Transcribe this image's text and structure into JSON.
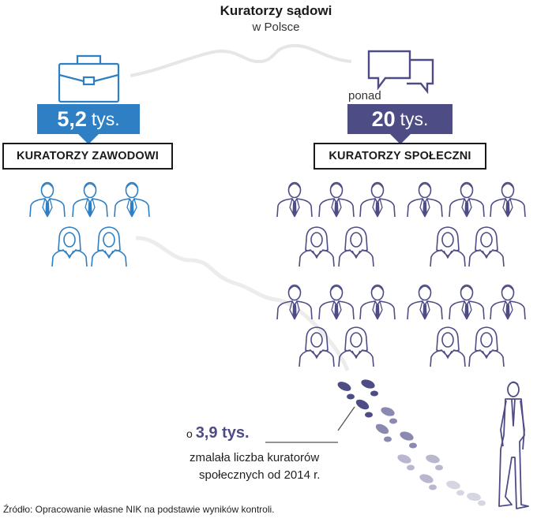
{
  "header": {
    "title": "Kuratorzy sądowi",
    "subtitle": "w Polsce"
  },
  "professional": {
    "value": "5,2",
    "unit": "tys.",
    "label": "KURATORZY ZAWODOWI",
    "color": "#2f7fc4",
    "icon": "briefcase-icon"
  },
  "social": {
    "prefix": "ponad",
    "value": "20",
    "unit": "tys.",
    "label": "KURATORZY SPOŁECZNI",
    "color": "#4e4c85",
    "icon": "speech-bubbles-icon"
  },
  "decline": {
    "prefix": "o",
    "value": "3,9 tys.",
    "line1": "zmalała liczba kuratorów",
    "line2": "społecznych od 2014 r.",
    "icon": "footprints-icon"
  },
  "source": "Źródło: Opracowanie własne NIK na podstawie wyników kontroli."
}
